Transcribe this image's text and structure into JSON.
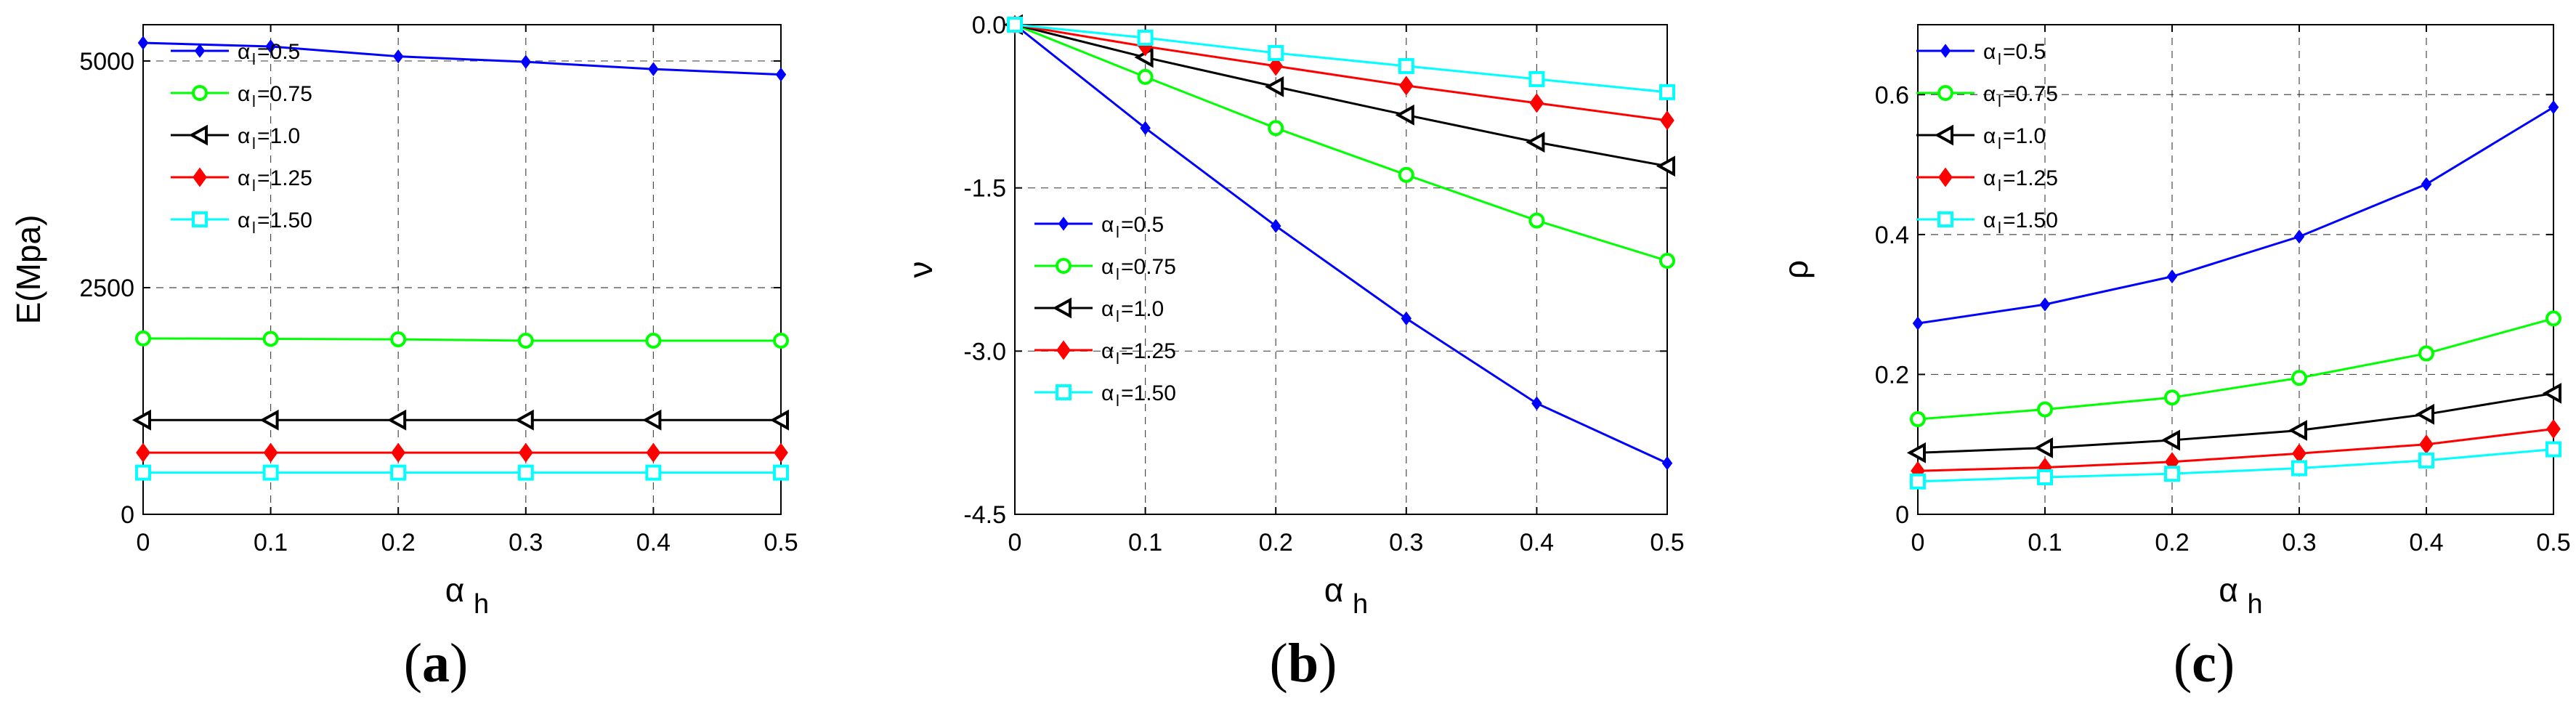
{
  "chart_data": [
    {
      "id": "a",
      "type": "line",
      "caption": "a",
      "ylabel": "E(Mpa)",
      "xlabel_main": "α",
      "xlabel_sub": "h",
      "xlim": [
        0,
        0.5
      ],
      "ylim": [
        0,
        5400
      ],
      "xticks": [
        0,
        0.1,
        0.2,
        0.3,
        0.4,
        0.5
      ],
      "xtick_labels": [
        "0",
        "0.1",
        "0.2",
        "0.3",
        "0.4",
        "0.5"
      ],
      "yticks": [
        0,
        2500,
        5000
      ],
      "ytick_labels": [
        "0",
        "2500",
        "5000"
      ],
      "x": [
        0,
        0.1,
        0.2,
        0.3,
        0.4,
        0.5
      ],
      "series": [
        {
          "name_main": "α",
          "name_sub": "l",
          "name_rest": "=0.5",
          "color": "#0000ff",
          "marker": "diamond-small",
          "values": [
            5200,
            5160,
            5050,
            4990,
            4910,
            4850
          ]
        },
        {
          "name_main": "α",
          "name_sub": "l",
          "name_rest": "=0.75",
          "color": "#00ff00",
          "marker": "circle",
          "values": [
            1940,
            1935,
            1930,
            1915,
            1915,
            1915
          ]
        },
        {
          "name_main": "α",
          "name_sub": "l",
          "name_rest": "=1.0",
          "color": "#000000",
          "marker": "triangle-left",
          "values": [
            1040,
            1040,
            1040,
            1040,
            1040,
            1040
          ]
        },
        {
          "name_main": "α",
          "name_sub": "l",
          "name_rest": "=1.25",
          "color": "#ff0000",
          "marker": "diamond",
          "values": [
            680,
            680,
            680,
            680,
            680,
            680
          ]
        },
        {
          "name_main": "α",
          "name_sub": "l",
          "name_rest": "=1.50",
          "color": "#00ffff",
          "marker": "square",
          "values": [
            460,
            460,
            460,
            460,
            460,
            460
          ]
        }
      ]
    },
    {
      "id": "b",
      "type": "line",
      "caption": "b",
      "ylabel": "ν",
      "xlabel_main": "α",
      "xlabel_sub": "h",
      "xlim": [
        0,
        0.5
      ],
      "ylim": [
        -4.5,
        0
      ],
      "xticks": [
        0,
        0.1,
        0.2,
        0.3,
        0.4,
        0.5
      ],
      "xtick_labels": [
        "0",
        "0.1",
        "0.2",
        "0.3",
        "0.4",
        "0.5"
      ],
      "yticks": [
        0,
        -1.5,
        -3.0,
        -4.5
      ],
      "ytick_labels": [
        "0.0",
        "-1.5",
        "-3.0",
        "-4.5"
      ],
      "x": [
        0,
        0.1,
        0.2,
        0.3,
        0.4,
        0.5
      ],
      "series": [
        {
          "name_main": "α",
          "name_sub": "l",
          "name_rest": "=0.5",
          "color": "#0000ff",
          "marker": "diamond-small",
          "values": [
            0,
            -0.95,
            -1.85,
            -2.7,
            -3.48,
            -4.03
          ]
        },
        {
          "name_main": "α",
          "name_sub": "l",
          "name_rest": "=0.75",
          "color": "#00ff00",
          "marker": "circle",
          "values": [
            0,
            -0.48,
            -0.95,
            -1.38,
            -1.8,
            -2.17
          ]
        },
        {
          "name_main": "α",
          "name_sub": "l",
          "name_rest": "=1.0",
          "color": "#000000",
          "marker": "triangle-left",
          "values": [
            0,
            -0.3,
            -0.57,
            -0.83,
            -1.08,
            -1.3
          ]
        },
        {
          "name_main": "α",
          "name_sub": "l",
          "name_rest": "=1.25",
          "color": "#ff0000",
          "marker": "diamond",
          "values": [
            0,
            -0.2,
            -0.38,
            -0.56,
            -0.72,
            -0.88
          ]
        },
        {
          "name_main": "α",
          "name_sub": "l",
          "name_rest": "=1.50",
          "color": "#00ffff",
          "marker": "square",
          "values": [
            0,
            -0.12,
            -0.26,
            -0.38,
            -0.5,
            -0.62
          ]
        }
      ]
    },
    {
      "id": "c",
      "type": "line",
      "caption": "c",
      "ylabel": "ρ",
      "xlabel_main": "α",
      "xlabel_sub": "h",
      "xlim": [
        0,
        0.5
      ],
      "ylim": [
        0,
        0.7
      ],
      "xticks": [
        0,
        0.1,
        0.2,
        0.3,
        0.4,
        0.5
      ],
      "xtick_labels": [
        "0",
        "0.1",
        "0.2",
        "0.3",
        "0.4",
        "0.5"
      ],
      "yticks": [
        0,
        0.2,
        0.4,
        0.6
      ],
      "ytick_labels": [
        "0",
        "0.2",
        "0.4",
        "0.6"
      ],
      "x": [
        0,
        0.1,
        0.2,
        0.3,
        0.4,
        0.5
      ],
      "series": [
        {
          "name_main": "α",
          "name_sub": "l",
          "name_rest": "=0.5",
          "color": "#0000ff",
          "marker": "diamond-small",
          "values": [
            0.273,
            0.3,
            0.34,
            0.397,
            0.472,
            0.582
          ]
        },
        {
          "name_main": "α",
          "name_sub": "l",
          "name_rest": "=0.75",
          "color": "#00ff00",
          "marker": "circle",
          "values": [
            0.136,
            0.15,
            0.167,
            0.195,
            0.23,
            0.28
          ]
        },
        {
          "name_main": "α",
          "name_sub": "l",
          "name_rest": "=1.0",
          "color": "#000000",
          "marker": "triangle-left",
          "values": [
            0.088,
            0.095,
            0.106,
            0.12,
            0.143,
            0.173
          ]
        },
        {
          "name_main": "α",
          "name_sub": "l",
          "name_rest": "=1.25",
          "color": "#ff0000",
          "marker": "diamond",
          "values": [
            0.062,
            0.067,
            0.075,
            0.087,
            0.1,
            0.122
          ]
        },
        {
          "name_main": "α",
          "name_sub": "l",
          "name_rest": "=1.50",
          "color": "#00ffff",
          "marker": "square",
          "values": [
            0.047,
            0.053,
            0.058,
            0.066,
            0.077,
            0.093
          ]
        }
      ]
    }
  ]
}
